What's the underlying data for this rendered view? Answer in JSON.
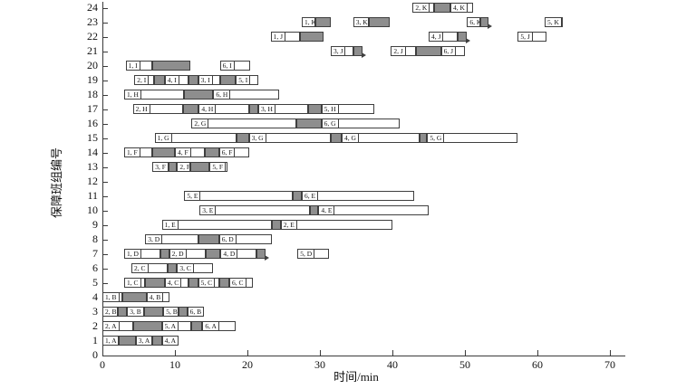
{
  "chart_data": {
    "type": "bar",
    "subtype": "gantt",
    "title": "",
    "xlabel": "时间/min",
    "ylabel": "保障班组编号",
    "xlim": [
      0,
      70
    ],
    "x_ticks": [
      0,
      10,
      20,
      30,
      40,
      50,
      60,
      70
    ],
    "ylim": [
      0,
      24
    ],
    "y_tick_step": 1,
    "grid": false,
    "legend": null,
    "colors": {
      "task_fill": "#ffffff",
      "transfer_fill": "#8e8e8e",
      "border": "#3f3f3f",
      "axis": "#3a3a3a"
    },
    "rows": [
      {
        "row": 1,
        "segments": [
          {
            "kind": "task",
            "label": "1, A",
            "start": 0,
            "end": 2.3
          },
          {
            "kind": "transfer",
            "start": 2.3,
            "end": 4.6
          },
          {
            "kind": "task",
            "label": "3, A",
            "start": 4.6,
            "end": 6.9
          },
          {
            "kind": "transfer",
            "start": 6.9,
            "end": 8.2
          },
          {
            "kind": "task",
            "label": "4, A",
            "start": 8.2,
            "end": 10.5
          }
        ]
      },
      {
        "row": 2,
        "segments": [
          {
            "kind": "task",
            "label": "2, A",
            "start": 0,
            "end": 4.2
          },
          {
            "kind": "transfer",
            "start": 4.2,
            "end": 8.2
          },
          {
            "kind": "task",
            "label": "5, A",
            "start": 8.2,
            "end": 12.3
          },
          {
            "kind": "transfer",
            "start": 12.3,
            "end": 13.8
          },
          {
            "kind": "task",
            "label": "6, A",
            "start": 13.8,
            "end": 18.4
          }
        ]
      },
      {
        "row": 3,
        "segments": [
          {
            "kind": "task",
            "label": "2, B",
            "start": 0,
            "end": 2.1
          },
          {
            "kind": "transfer",
            "start": 2.1,
            "end": 3.4
          },
          {
            "kind": "task",
            "label": "3, B",
            "start": 3.4,
            "end": 5.7
          },
          {
            "kind": "transfer",
            "start": 5.7,
            "end": 8.4
          },
          {
            "kind": "task",
            "label": "5, B",
            "start": 8.4,
            "end": 10.5
          },
          {
            "kind": "transfer",
            "start": 10.5,
            "end": 11.7
          },
          {
            "kind": "task",
            "label": "6, B",
            "start": 11.7,
            "end": 14.0
          }
        ]
      },
      {
        "row": 4,
        "segments": [
          {
            "kind": "task",
            "label": "1, B",
            "start": 0,
            "end": 2.8
          },
          {
            "kind": "transfer",
            "start": 2.8,
            "end": 6.1
          },
          {
            "kind": "task",
            "label": "4, B",
            "start": 6.1,
            "end": 9.2
          }
        ]
      },
      {
        "row": 5,
        "segments": [
          {
            "kind": "task",
            "label": "1, C",
            "start": 3.0,
            "end": 5.9
          },
          {
            "kind": "transfer",
            "start": 5.9,
            "end": 8.6
          },
          {
            "kind": "task",
            "label": "4, C",
            "start": 8.6,
            "end": 11.9
          },
          {
            "kind": "transfer",
            "start": 11.9,
            "end": 13.2
          },
          {
            "kind": "task",
            "label": "5, C",
            "start": 13.2,
            "end": 16.1
          },
          {
            "kind": "transfer",
            "start": 16.1,
            "end": 17.5
          },
          {
            "kind": "task",
            "label": "6, C",
            "start": 17.5,
            "end": 20.7
          }
        ]
      },
      {
        "row": 6,
        "segments": [
          {
            "kind": "task",
            "label": "2, C",
            "start": 4.0,
            "end": 9.0
          },
          {
            "kind": "transfer",
            "start": 9.0,
            "end": 10.3
          },
          {
            "kind": "task",
            "label": "3, C",
            "start": 10.3,
            "end": 15.3
          }
        ]
      },
      {
        "row": 7,
        "segments": [
          {
            "kind": "task",
            "label": "1, D",
            "start": 3.0,
            "end": 8.0
          },
          {
            "kind": "transfer",
            "start": 8.0,
            "end": 9.2
          },
          {
            "kind": "task",
            "label": "2, D",
            "start": 9.2,
            "end": 14.2
          },
          {
            "kind": "transfer",
            "start": 14.2,
            "end": 16.3
          },
          {
            "kind": "task",
            "label": "4, D",
            "start": 16.3,
            "end": 21.3
          },
          {
            "kind": "transfer",
            "start": 21.3,
            "end": 22.5,
            "arrow": true
          },
          {
            "kind": "task",
            "label": "5, D",
            "start": 26.9,
            "end": 31.3
          }
        ]
      },
      {
        "row": 8,
        "segments": [
          {
            "kind": "task",
            "label": "3, D",
            "start": 5.9,
            "end": 13.2
          },
          {
            "kind": "transfer",
            "start": 13.2,
            "end": 16.1
          },
          {
            "kind": "task",
            "label": "6, D",
            "start": 16.1,
            "end": 23.4
          }
        ]
      },
      {
        "row": 9,
        "segments": [
          {
            "kind": "task",
            "label": "1, E",
            "start": 8.2,
            "end": 23.4
          },
          {
            "kind": "transfer",
            "start": 23.4,
            "end": 24.6
          },
          {
            "kind": "task",
            "label": "2, E",
            "start": 24.6,
            "end": 40.0
          }
        ]
      },
      {
        "row": 10,
        "segments": [
          {
            "kind": "task",
            "label": "3, E",
            "start": 13.4,
            "end": 28.6
          },
          {
            "kind": "transfer",
            "start": 28.6,
            "end": 29.8
          },
          {
            "kind": "task",
            "label": "4, E",
            "start": 29.8,
            "end": 45.0
          }
        ]
      },
      {
        "row": 11,
        "segments": [
          {
            "kind": "task",
            "label": "5, E",
            "start": 11.3,
            "end": 26.3
          },
          {
            "kind": "transfer",
            "start": 26.3,
            "end": 27.5
          },
          {
            "kind": "task",
            "label": "6, E",
            "start": 27.5,
            "end": 43.0
          }
        ]
      },
      {
        "row": 12,
        "segments": []
      },
      {
        "row": 13,
        "segments": [
          {
            "kind": "task",
            "label": "3, F",
            "start": 6.9,
            "end": 9.1
          },
          {
            "kind": "transfer",
            "start": 9.1,
            "end": 10.3
          },
          {
            "kind": "task",
            "label": "2, F",
            "start": 10.3,
            "end": 12.1
          },
          {
            "kind": "transfer",
            "start": 12.1,
            "end": 14.8
          },
          {
            "kind": "task",
            "label": "5, F",
            "start": 14.8,
            "end": 17.3
          }
        ]
      },
      {
        "row": 14,
        "segments": [
          {
            "kind": "task",
            "label": "1, F",
            "start": 3.0,
            "end": 6.9
          },
          {
            "kind": "transfer",
            "start": 6.9,
            "end": 10.0
          },
          {
            "kind": "task",
            "label": "4, F",
            "start": 10.0,
            "end": 14.1
          },
          {
            "kind": "transfer",
            "start": 14.1,
            "end": 16.1
          },
          {
            "kind": "task",
            "label": "6, F",
            "start": 16.1,
            "end": 20.3
          }
        ]
      },
      {
        "row": 15,
        "segments": [
          {
            "kind": "task",
            "label": "1, G",
            "start": 7.2,
            "end": 18.5
          },
          {
            "kind": "transfer",
            "start": 18.5,
            "end": 20.2
          },
          {
            "kind": "task",
            "label": "3, G",
            "start": 20.2,
            "end": 31.5
          },
          {
            "kind": "transfer",
            "start": 31.5,
            "end": 33.0
          },
          {
            "kind": "task",
            "label": "4, G",
            "start": 33.0,
            "end": 43.8
          },
          {
            "kind": "transfer",
            "start": 43.8,
            "end": 44.8
          },
          {
            "kind": "task",
            "label": "5, G",
            "start": 44.8,
            "end": 57.3
          }
        ]
      },
      {
        "row": 16,
        "segments": [
          {
            "kind": "task",
            "label": "2, G",
            "start": 12.3,
            "end": 26.7
          },
          {
            "kind": "transfer",
            "start": 26.7,
            "end": 30.2
          },
          {
            "kind": "task",
            "label": "6, G",
            "start": 30.2,
            "end": 41.0
          }
        ]
      },
      {
        "row": 17,
        "segments": [
          {
            "kind": "task",
            "label": "2, H",
            "start": 4.2,
            "end": 11.1
          },
          {
            "kind": "transfer",
            "start": 11.1,
            "end": 13.3
          },
          {
            "kind": "task",
            "label": "4, H",
            "start": 13.3,
            "end": 20.3
          },
          {
            "kind": "transfer",
            "start": 20.3,
            "end": 21.5
          },
          {
            "kind": "task",
            "label": "3, H",
            "start": 21.5,
            "end": 28.4
          },
          {
            "kind": "transfer",
            "start": 28.4,
            "end": 30.2
          },
          {
            "kind": "task",
            "label": "5, H",
            "start": 30.2,
            "end": 37.5
          }
        ]
      },
      {
        "row": 18,
        "segments": [
          {
            "kind": "task",
            "label": "1, H",
            "start": 3.0,
            "end": 11.3
          },
          {
            "kind": "transfer",
            "start": 11.3,
            "end": 15.3
          },
          {
            "kind": "task",
            "label": "6, H",
            "start": 15.3,
            "end": 24.4
          }
        ]
      },
      {
        "row": 19,
        "segments": [
          {
            "kind": "task",
            "label": "2, I",
            "start": 4.4,
            "end": 7.1
          },
          {
            "kind": "transfer",
            "start": 7.1,
            "end": 8.6
          },
          {
            "kind": "task",
            "label": "4, I",
            "start": 8.6,
            "end": 11.9
          },
          {
            "kind": "transfer",
            "start": 11.9,
            "end": 13.2
          },
          {
            "kind": "task",
            "label": "3, I",
            "start": 13.2,
            "end": 16.3
          },
          {
            "kind": "transfer",
            "start": 16.3,
            "end": 18.4
          },
          {
            "kind": "task",
            "label": "5, I",
            "start": 18.4,
            "end": 21.5
          }
        ]
      },
      {
        "row": 20,
        "segments": [
          {
            "kind": "task",
            "label": "1, I",
            "start": 3.2,
            "end": 6.9
          },
          {
            "kind": "transfer",
            "start": 6.9,
            "end": 12.1
          },
          {
            "kind": "task",
            "label": "6, I",
            "start": 16.2,
            "end": 20.4
          }
        ]
      },
      {
        "row": 21,
        "segments": [
          {
            "kind": "task",
            "label": "3, J",
            "start": 31.5,
            "end": 34.6
          },
          {
            "kind": "transfer",
            "start": 34.6,
            "end": 35.9,
            "arrow": true
          },
          {
            "kind": "task",
            "label": "2, J",
            "start": 39.8,
            "end": 43.2
          },
          {
            "kind": "transfer",
            "start": 43.2,
            "end": 46.7
          },
          {
            "kind": "task",
            "label": "6, J",
            "start": 46.7,
            "end": 50.0
          }
        ]
      },
      {
        "row": 22,
        "segments": [
          {
            "kind": "task",
            "label": "1, J",
            "start": 23.2,
            "end": 27.3
          },
          {
            "kind": "transfer",
            "start": 27.3,
            "end": 30.5
          },
          {
            "kind": "task",
            "label": "4, J",
            "start": 45.0,
            "end": 49.0
          },
          {
            "kind": "transfer",
            "start": 49.0,
            "end": 50.3,
            "arrow": true
          },
          {
            "kind": "task",
            "label": "5, J",
            "start": 57.3,
            "end": 61.3
          }
        ]
      },
      {
        "row": 23,
        "segments": [
          {
            "kind": "task",
            "label": "1, K",
            "start": 27.5,
            "end": 29.4
          },
          {
            "kind": "transfer",
            "start": 29.4,
            "end": 31.5
          },
          {
            "kind": "task",
            "label": "3, K",
            "start": 34.6,
            "end": 36.7
          },
          {
            "kind": "transfer",
            "start": 36.7,
            "end": 39.6
          },
          {
            "kind": "task",
            "label": "6, K",
            "start": 50.3,
            "end": 52.1
          },
          {
            "kind": "transfer",
            "start": 52.1,
            "end": 53.2,
            "arrow": true
          },
          {
            "kind": "task",
            "label": "5, K",
            "start": 61.0,
            "end": 63.5
          }
        ]
      },
      {
        "row": 24,
        "segments": [
          {
            "kind": "task",
            "label": "2, K",
            "start": 42.8,
            "end": 45.7
          },
          {
            "kind": "transfer",
            "start": 45.7,
            "end": 48.0
          },
          {
            "kind": "task",
            "label": "4, K",
            "start": 48.0,
            "end": 51.1
          }
        ]
      }
    ]
  }
}
